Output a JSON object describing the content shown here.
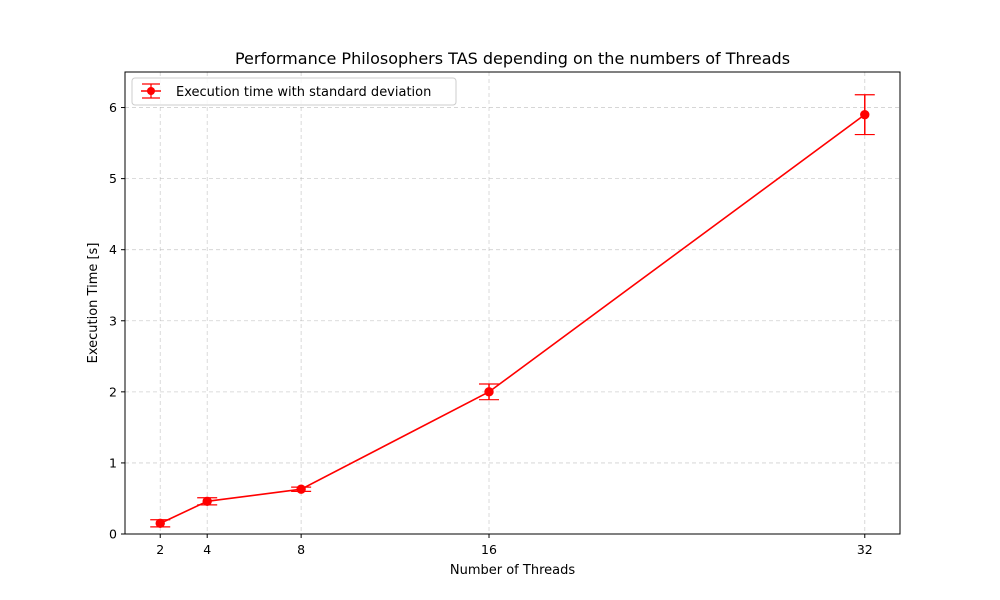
{
  "chart_data": {
    "type": "line",
    "title": "Performance Philosophers TAS depending on the numbers of Threads",
    "xlabel": "Number of Threads",
    "ylabel": "Execution Time [s]",
    "xlim": [
      0.5,
      33.5
    ],
    "ylim": [
      0,
      6.5
    ],
    "xticks": [
      2,
      4,
      8,
      16,
      32
    ],
    "yticks": [
      0,
      1,
      2,
      3,
      4,
      5,
      6
    ],
    "grid": true,
    "legend_position": "top-left",
    "series": [
      {
        "name": "Execution time with standard deviation",
        "color": "#ff0000",
        "x": [
          2,
          4,
          8,
          16,
          32
        ],
        "y": [
          0.15,
          0.46,
          0.63,
          2.0,
          5.9
        ],
        "yerr": [
          0.05,
          0.05,
          0.03,
          0.11,
          0.28
        ]
      }
    ]
  }
}
